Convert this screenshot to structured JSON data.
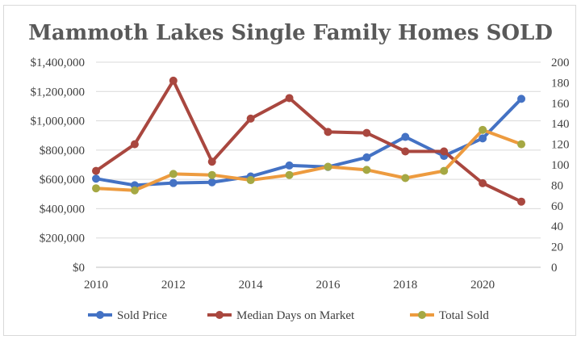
{
  "chart_data": {
    "type": "line",
    "title": "Mammoth Lakes Single Family Homes SOLD",
    "x": [
      2010,
      2011,
      2012,
      2013,
      2014,
      2015,
      2016,
      2017,
      2018,
      2019,
      2020,
      2021
    ],
    "x_tick_labels": [
      "2010",
      "2012",
      "2014",
      "2016",
      "2018",
      "2020"
    ],
    "xlim": [
      2010,
      2021.5
    ],
    "y_left": {
      "lim": [
        0,
        1400000
      ],
      "tick_labels": [
        "$0",
        "$200,000",
        "$400,000",
        "$600,000",
        "$800,000",
        "$1,000,000",
        "$1,200,000",
        "$1,400,000"
      ],
      "tick_values": [
        0,
        200000,
        400000,
        600000,
        800000,
        1000000,
        1200000,
        1400000
      ]
    },
    "y_right": {
      "lim": [
        0,
        200
      ],
      "tick_labels": [
        "0",
        "20",
        "40",
        "60",
        "80",
        "100",
        "120",
        "140",
        "160",
        "180",
        "200"
      ],
      "tick_values": [
        0,
        20,
        40,
        60,
        80,
        100,
        120,
        140,
        160,
        180,
        200
      ]
    },
    "grid": true,
    "legend_position": "bottom",
    "series": [
      {
        "name": "Sold Price",
        "axis": "left",
        "color": "#4472C4",
        "values": [
          605000,
          560000,
          575000,
          580000,
          620000,
          695000,
          685000,
          750000,
          890000,
          760000,
          880000,
          1150000
        ]
      },
      {
        "name": "Median Days on Market",
        "axis": "right",
        "color": "#A9473F",
        "values": [
          94,
          120,
          182,
          103,
          145,
          165,
          132,
          131,
          113,
          113,
          82,
          64
        ]
      },
      {
        "name": "Total Sold",
        "axis": "right",
        "color": "#ED9B3F",
        "values": [
          77,
          75,
          91,
          90,
          85,
          90,
          98,
          95,
          87,
          94,
          134,
          120
        ]
      }
    ],
    "marker_colors": {
      "Sold Price": "#4472C4",
      "Median Days on Market": "#A9473F",
      "Total Sold": "#A5A843"
    }
  }
}
